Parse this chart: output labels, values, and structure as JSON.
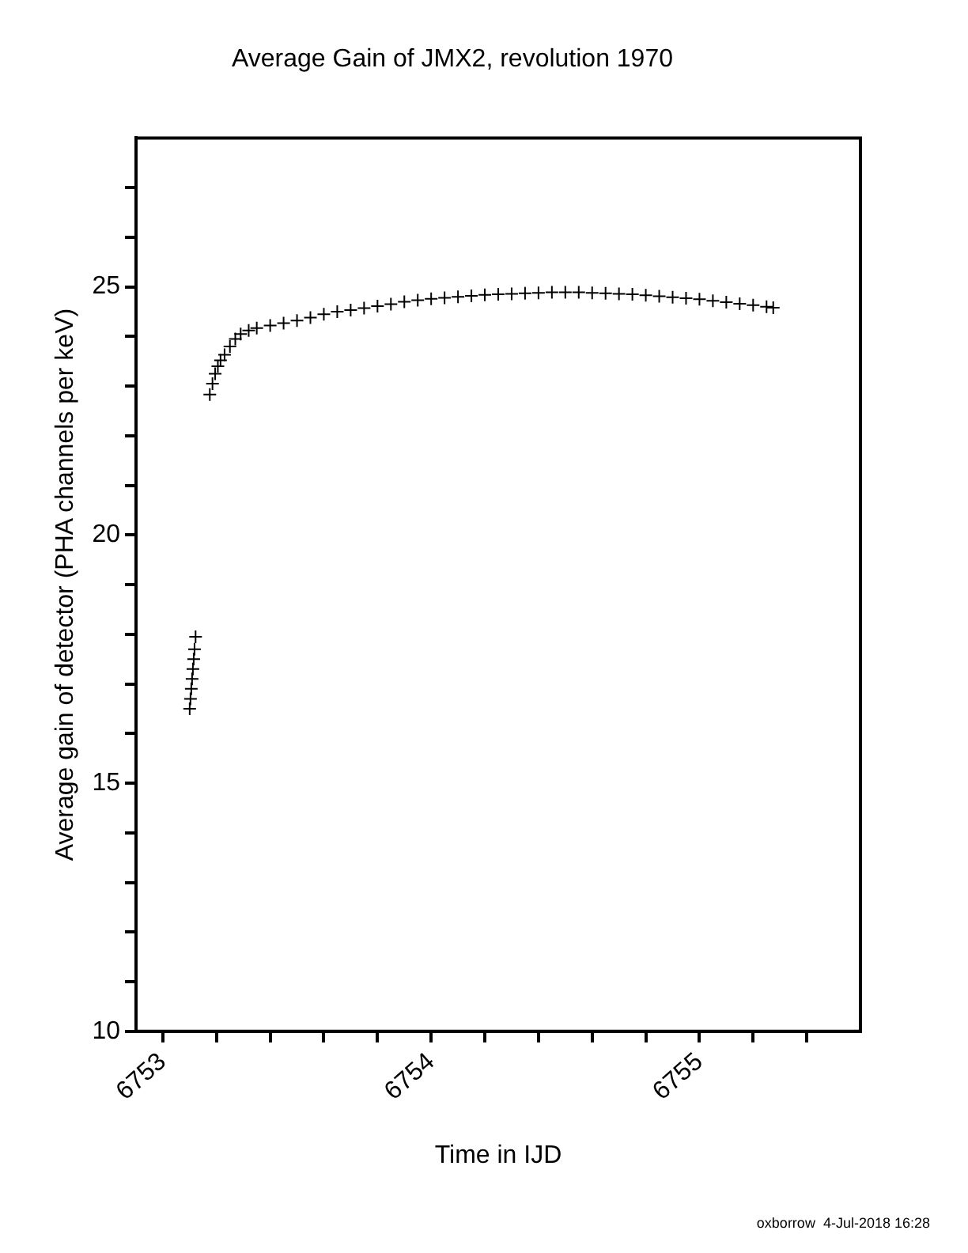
{
  "chart_data": {
    "type": "scatter",
    "title": "Average Gain of JMX2, revolution 1970",
    "xlabel": "Time in IJD",
    "ylabel": "Average gain of detector (PHA channels per keV)",
    "annotations": [
      "oxborrow  4-Jul-2018 16:28"
    ],
    "xlim": [
      6752.9,
      6755.6
    ],
    "ylim": [
      10,
      28
    ],
    "xticks": [
      6753,
      {
        "value": 6753.2,
        "label": null
      },
      {
        "value": 6753.4,
        "label": null
      },
      {
        "value": 6753.6,
        "label": null
      },
      {
        "value": 6753.8,
        "label": null
      },
      6754,
      {
        "value": 6754.2,
        "label": null
      },
      {
        "value": 6754.4,
        "label": null
      },
      {
        "value": 6754.6,
        "label": null
      },
      {
        "value": 6754.8,
        "label": null
      },
      6755,
      {
        "value": 6755.2,
        "label": null
      },
      {
        "value": 6755.4,
        "label": null
      }
    ],
    "yticks": [
      10,
      {
        "value": 11,
        "label": null
      },
      {
        "value": 12,
        "label": null
      },
      {
        "value": 13,
        "label": null
      },
      {
        "value": 14,
        "label": null
      },
      15,
      {
        "value": 16,
        "label": null
      },
      {
        "value": 17,
        "label": null
      },
      {
        "value": 18,
        "label": null
      },
      {
        "value": 19,
        "label": null
      },
      20,
      {
        "value": 21,
        "label": null
      },
      {
        "value": 22,
        "label": null
      },
      {
        "value": 23,
        "label": null
      },
      {
        "value": 24,
        "label": null
      },
      25,
      {
        "value": 26,
        "label": null
      },
      {
        "value": 27,
        "label": null
      }
    ],
    "grid": false,
    "legend": false,
    "marker": "cross",
    "series": [
      {
        "color": "#000000",
        "x": [
          6753.1,
          6753.103,
          6753.106,
          6753.109,
          6753.112,
          6753.115,
          6753.118,
          6753.122
        ],
        "values": [
          16.5,
          16.7,
          16.9,
          17.1,
          17.3,
          17.5,
          17.7,
          17.95
        ]
      },
      {
        "color": "#000000",
        "x": [
          6753.175,
          6753.185,
          6753.195,
          6753.205,
          6753.215,
          6753.23,
          6753.25,
          6753.27,
          6753.29,
          6753.32,
          6753.35,
          6753.4,
          6753.45,
          6753.5,
          6753.55,
          6753.6,
          6753.65,
          6753.7,
          6753.75,
          6753.8,
          6753.85,
          6753.9,
          6753.95,
          6754,
          6754.05,
          6754.1,
          6754.15,
          6754.2,
          6754.25,
          6754.3,
          6754.35,
          6754.4,
          6754.45,
          6754.5,
          6754.55,
          6754.6,
          6754.65,
          6754.7,
          6754.75,
          6754.8,
          6754.85,
          6754.9,
          6754.95,
          6755,
          6755.05,
          6755.1,
          6755.15,
          6755.2,
          6755.25,
          6755.275
        ],
        "values": [
          22.83,
          23.05,
          23.25,
          23.4,
          23.52,
          23.63,
          23.8,
          23.95,
          24.05,
          24.12,
          24.17,
          24.22,
          24.27,
          24.32,
          24.38,
          24.45,
          24.5,
          24.53,
          24.57,
          24.61,
          24.65,
          24.7,
          24.73,
          24.76,
          24.78,
          24.8,
          24.82,
          24.84,
          24.85,
          24.86,
          24.87,
          24.88,
          24.89,
          24.89,
          24.89,
          24.88,
          24.87,
          24.86,
          24.85,
          24.83,
          24.81,
          24.79,
          24.77,
          24.75,
          24.72,
          24.69,
          24.66,
          24.63,
          24.6,
          24.58
        ]
      }
    ]
  }
}
